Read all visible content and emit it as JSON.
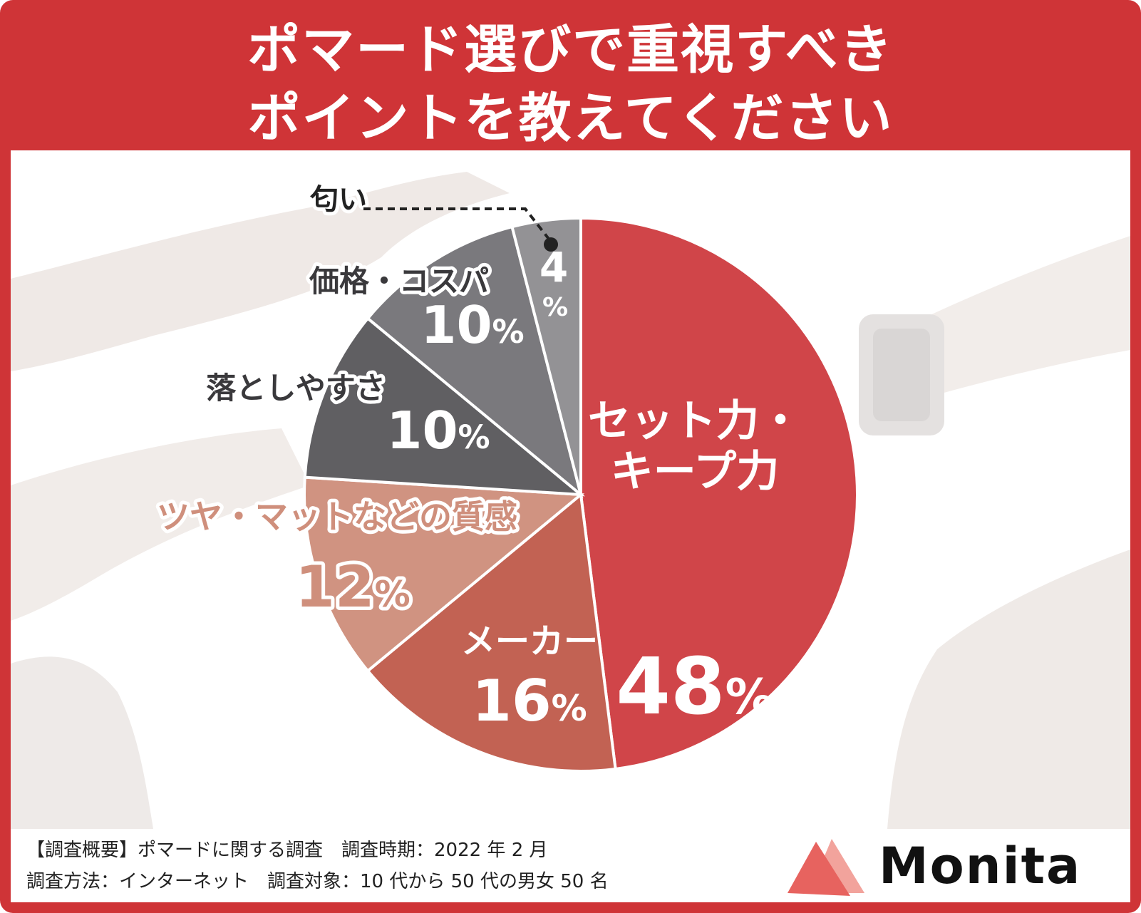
{
  "title": {
    "line1": "ポマード選びで重視すべき",
    "line2": "ポイントを教えてください"
  },
  "chart_data": {
    "type": "pie",
    "title": "ポマード選びで重視すべきポイントを教えてください",
    "unit": "%",
    "slices": [
      {
        "label": "セット力・キープ力",
        "label_lines": [
          "セット力・",
          "キープ力"
        ],
        "value": 48,
        "color": "#cf3e42"
      },
      {
        "label": "メーカー",
        "label_lines": [
          "メーカー"
        ],
        "value": 16,
        "color": "#c05c4d"
      },
      {
        "label": "ツヤ・マットなどの質感",
        "label_lines": [
          "ツヤ・マットなどの質感"
        ],
        "value": 12,
        "color": "#cf8f7c"
      },
      {
        "label": "落としやすさ",
        "label_lines": [
          "落としやすさ"
        ],
        "value": 10,
        "color": "#5a595c"
      },
      {
        "label": "価格・コスパ",
        "label_lines": [
          "価格・コスパ"
        ],
        "value": 10,
        "color": "#757478"
      },
      {
        "label": "匂い",
        "label_lines": [
          "匂い"
        ],
        "value": 4,
        "color": "#8f8e91"
      }
    ],
    "value_labels": [
      "48",
      "16",
      "12",
      "10",
      "10",
      "4"
    ],
    "percent_sign": "%"
  },
  "footer": {
    "survey_line1": "【調査概要】ポマードに関する調査　調査時期：2022 年 2 月",
    "survey_line2": "調査方法：インターネット　調査対象：10 代から 50 代の男女 50 名"
  },
  "brand": {
    "name": "Monita",
    "logo_colors": [
      "#e7635f",
      "#f2a39c"
    ]
  },
  "colors": {
    "frame": "#cf3437",
    "panel": "#ffffff"
  }
}
